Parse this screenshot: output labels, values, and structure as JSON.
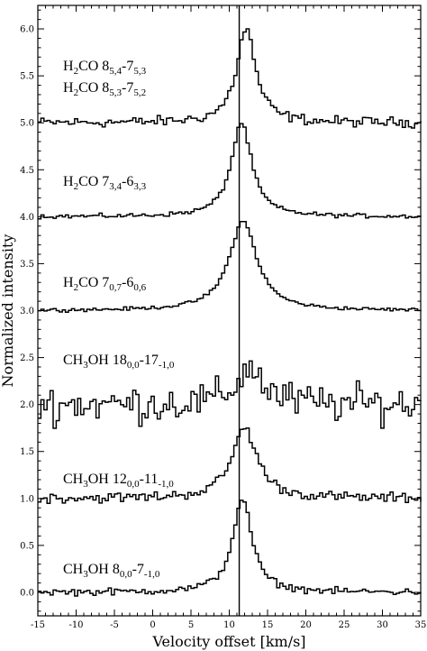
{
  "chart_data": {
    "type": "line",
    "xlabel": "Velocity offset [km/s]",
    "ylabel": "Normalized intensity",
    "xlim": [
      -15,
      35
    ],
    "ylim": [
      -0.25,
      6.25
    ],
    "x_ticks": [
      -15,
      -10,
      -5,
      0,
      5,
      10,
      15,
      20,
      25,
      30,
      35
    ],
    "x_tick_labels": [
      "-15",
      "-10",
      "-5",
      "0",
      "5",
      "10",
      "15",
      "20",
      "25",
      "30",
      "35"
    ],
    "y_ticks": [
      0,
      0.5,
      1,
      1.5,
      2,
      2.5,
      3,
      3.5,
      4,
      4.5,
      5,
      5.5,
      6
    ],
    "y_tick_labels": [
      "0.0",
      "0.5",
      "1.0",
      "1.5",
      "2.0",
      "2.5",
      "3.0",
      "3.5",
      "4.0",
      "4.5",
      "5.0",
      "5.5",
      "6.0"
    ],
    "reference_velocity": 11.3,
    "grid": false,
    "series": [
      {
        "name": "H2CO 8(5,4)-7(5,3) / H2CO 8(5,3)-7(5,2)",
        "offset": 5.0,
        "peak": 1.0,
        "center": 12.0,
        "width": 1.5,
        "noise": 0.06
      },
      {
        "name": "H2CO 7(3,4)-6(3,3)",
        "offset": 4.0,
        "peak": 1.0,
        "center": 11.4,
        "width": 1.6,
        "noise": 0.025
      },
      {
        "name": "H2CO 7(0,7)-6(0,6)",
        "offset": 3.0,
        "peak": 0.95,
        "center": 11.6,
        "width": 2.2,
        "noise": 0.02
      },
      {
        "name": "CH3OH 18(0,0)-17(-1,0)",
        "offset": 2.0,
        "peak": 0.4,
        "center": 12.5,
        "width": 2.0,
        "noise": 0.22
      },
      {
        "name": "CH3OH 12(0,0)-11(-1,0)",
        "offset": 1.0,
        "peak": 0.75,
        "center": 11.8,
        "width": 2.0,
        "noise": 0.06
      },
      {
        "name": "CH3OH 8(0,0)-7(-1,0)",
        "offset": 0.0,
        "peak": 1.0,
        "center": 11.5,
        "width": 1.5,
        "noise": 0.04
      }
    ]
  },
  "labels": [
    {
      "mol": "H",
      "sub1": "2",
      "rest": "CO 8",
      "s1": "5,4",
      "dash": "-7",
      "s2": "5,3"
    },
    {
      "mol": "H",
      "sub1": "2",
      "rest": "CO 8",
      "s1": "5,3",
      "dash": "-7",
      "s2": "5,2"
    },
    {
      "mol": "H",
      "sub1": "2",
      "rest": "CO 7",
      "s1": "3,4",
      "dash": "-6",
      "s2": "3,3"
    },
    {
      "mol": "H",
      "sub1": "2",
      "rest": "CO 7",
      "s1": "0,7",
      "dash": "-6",
      "s2": "0,6"
    },
    {
      "mol": "CH",
      "sub1": "3",
      "rest": "OH 18",
      "s1": "0,0",
      "dash": "-17",
      "s2": "-1,0"
    },
    {
      "mol": "CH",
      "sub1": "3",
      "rest": "OH 12",
      "s1": "0,0",
      "dash": "-11",
      "s2": "-1,0"
    },
    {
      "mol": "CH",
      "sub1": "3",
      "rest": "OH 8",
      "s1": "0,0",
      "dash": "-7",
      "s2": "-1,0"
    }
  ]
}
